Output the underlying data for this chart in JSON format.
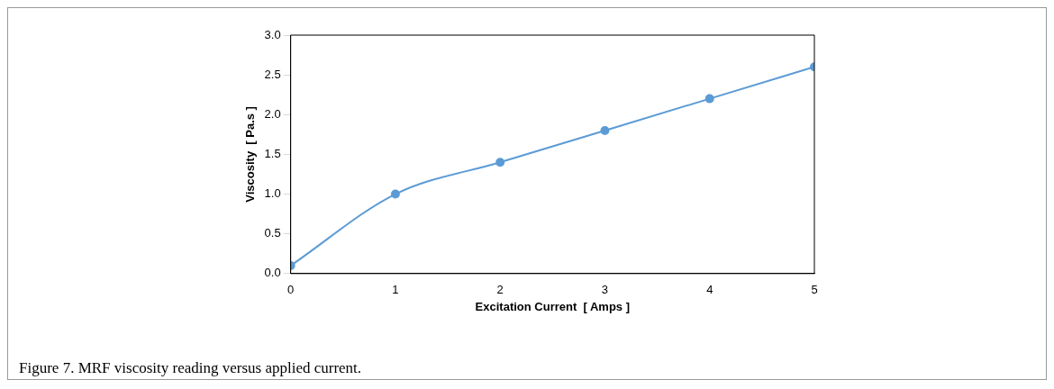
{
  "chart_data": {
    "type": "line",
    "xlabel": "Excitation Current  [ Amps ]",
    "ylabel": "Viscosity  [ Pa.s ]",
    "x": [
      0,
      1,
      2,
      3,
      4,
      5
    ],
    "series": [
      {
        "color": "#5b9bd5",
        "values": [
          0.1,
          1.0,
          1.4,
          1.8,
          2.2,
          2.6
        ]
      }
    ],
    "xlim": [
      0,
      5
    ],
    "xticks": [
      0,
      1,
      2,
      3,
      4,
      5
    ],
    "ylim": [
      0,
      3
    ],
    "yticks": [
      {
        "value": 0,
        "label": "0.0"
      },
      {
        "value": 0.5,
        "label": "0.5"
      },
      {
        "value": 1,
        "label": "1.0"
      },
      {
        "value": 1.5,
        "label": "1.5"
      },
      {
        "value": 2,
        "label": "2.0"
      },
      {
        "value": 2.5,
        "label": "2.5"
      },
      {
        "value": 3,
        "label": "3.0"
      }
    ],
    "grid": false,
    "legend": false,
    "marker": "circle",
    "line_style": "solid",
    "annotations": [
      "Figure 7. MRF viscosity reading versus applied current."
    ]
  }
}
